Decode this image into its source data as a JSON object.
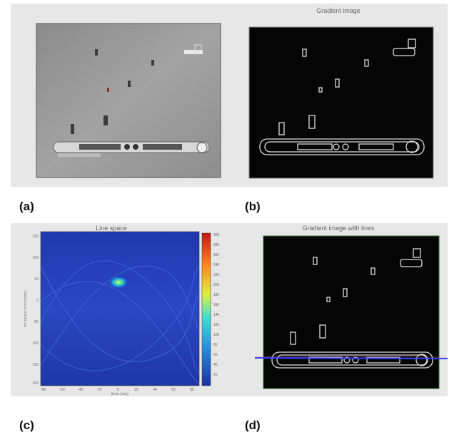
{
  "panels": {
    "a": {
      "caption": "(a)"
    },
    "b": {
      "title": "Gradient image",
      "caption": "(b)"
    },
    "c": {
      "title": "Line space",
      "caption": "(c)",
      "xlabel": "theta (deg)",
      "ylabel": "rho (pixels from center)",
      "yticks": [
        "150",
        "100",
        "50",
        "0",
        "-50",
        "-100",
        "-150",
        "-200"
      ],
      "xticks": [
        "-80",
        "-60",
        "-40",
        "-20",
        "0",
        "20",
        "40",
        "60",
        "80"
      ],
      "colorbar_ticks": [
        "300",
        "280",
        "260",
        "240",
        "220",
        "200",
        "180",
        "160",
        "140",
        "120",
        "100",
        "80",
        "60",
        "40",
        "20"
      ]
    },
    "d": {
      "title": "Gradient image with lines",
      "caption": "(d)"
    }
  },
  "colors": {
    "panel_bg": "#e7e7e7",
    "heatmap_low": "#1a2fa8",
    "heatmap_peak": "#ffff40",
    "detected_line": "#3344ff"
  }
}
